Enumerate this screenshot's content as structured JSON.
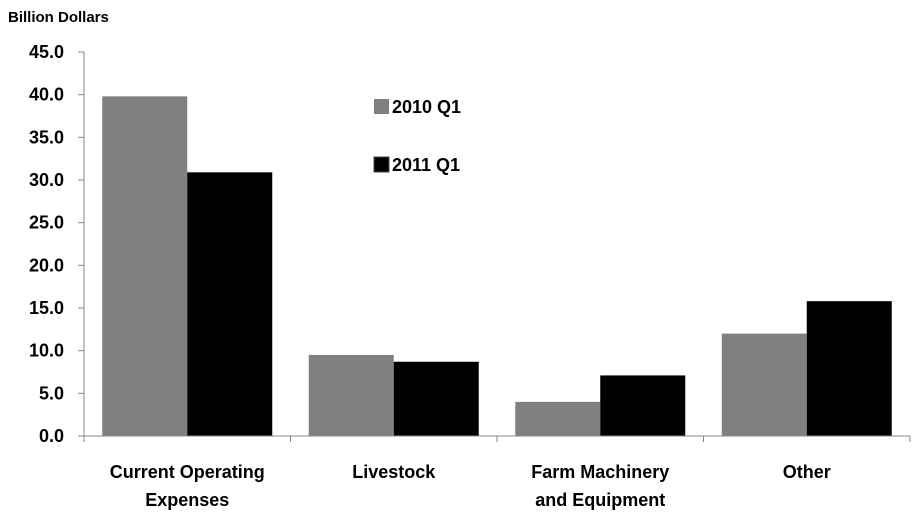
{
  "chart_data": {
    "type": "bar",
    "ylabel": "Billion Dollars",
    "categories": [
      [
        "Current Operating",
        "Expenses"
      ],
      [
        "Livestock"
      ],
      [
        "Farm Machinery",
        "and Equipment"
      ],
      [
        "Other"
      ]
    ],
    "series": [
      {
        "name": "2010 Q1",
        "color": "#808080",
        "values": [
          39.8,
          9.5,
          4.0,
          12.0
        ]
      },
      {
        "name": "2011 Q1",
        "color": "#000000",
        "values": [
          30.9,
          8.7,
          7.1,
          15.8
        ]
      }
    ],
    "ylim": [
      0,
      45
    ],
    "yticks": [
      "0.0",
      "5.0",
      "10.0",
      "15.0",
      "20.0",
      "25.0",
      "30.0",
      "35.0",
      "40.0",
      "45.0"
    ],
    "grid": false,
    "legend_position": "top-center"
  }
}
